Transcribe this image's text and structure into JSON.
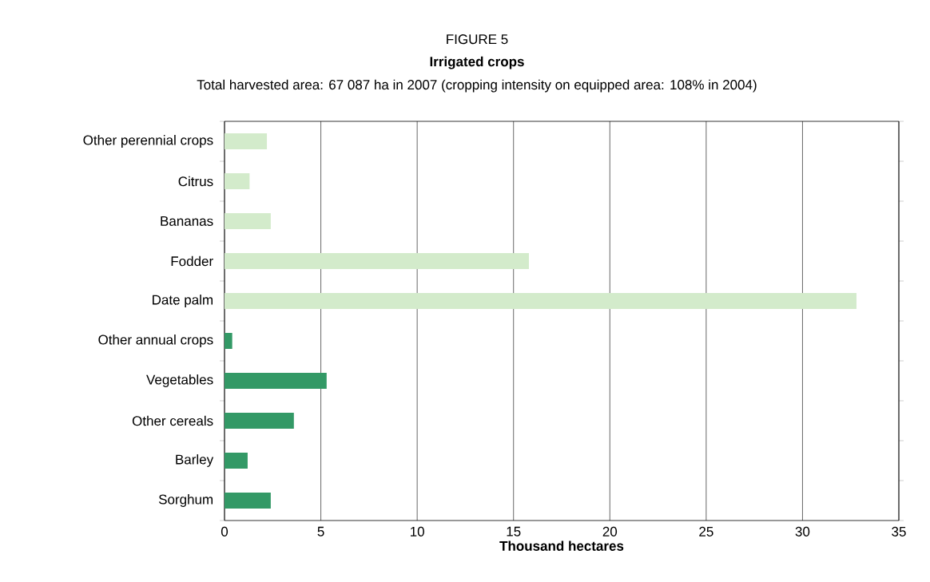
{
  "chart_data": {
    "type": "bar",
    "orientation": "horizontal",
    "title": "FIGURE 5",
    "subtitle": "Irrigated crops",
    "annotations": [
      "Total harvested area: 67 087 ha in 2007 (cropping intensity on equipped area: 108% in 2004)"
    ],
    "categories": [
      "Other perennial crops",
      "Citrus",
      "Bananas",
      "Fodder",
      "Date palm",
      "Other annual crops",
      "Vegetables",
      "Other cereals",
      "Barley",
      "Sorghum"
    ],
    "values": [
      2.2,
      1.3,
      2.4,
      15.8,
      32.8,
      0.4,
      5.3,
      3.6,
      1.2,
      2.4
    ],
    "colors": [
      "#d3ebcb",
      "#d3ebcb",
      "#d3ebcb",
      "#d3ebcb",
      "#d3ebcb",
      "#339966",
      "#339966",
      "#339966",
      "#339966",
      "#339966"
    ],
    "xlim": [
      0,
      35
    ],
    "xticks": [
      0,
      5,
      10,
      15,
      20,
      25,
      30,
      35
    ],
    "grid": "x",
    "xlabel": "Thousand hectares"
  }
}
